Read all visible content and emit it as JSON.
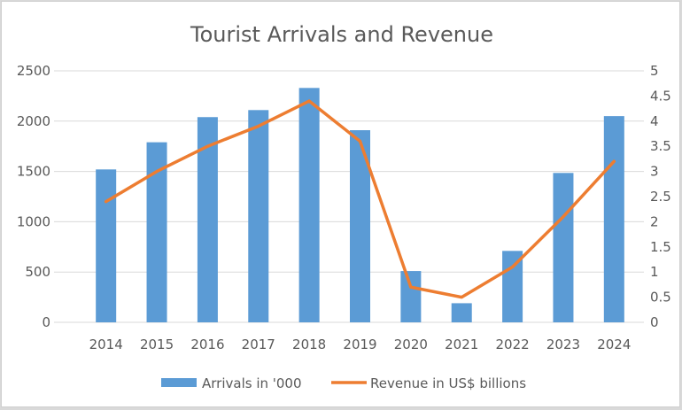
{
  "chart_data": {
    "type": "bar",
    "title": "Tourist Arrivals and Revenue",
    "xlabel": "",
    "ylabel": "",
    "y2label": "",
    "categories": [
      "2014",
      "2015",
      "2016",
      "2017",
      "2018",
      "2019",
      "2020",
      "2021",
      "2022",
      "2023",
      "2024"
    ],
    "series": [
      {
        "name": "Arrivals in '000",
        "type": "bar",
        "axis": "left",
        "color": "#5b9bd5",
        "values": [
          1520,
          1790,
          2040,
          2110,
          2330,
          1910,
          510,
          190,
          710,
          1485,
          2050
        ]
      },
      {
        "name": "Revenue in US$ billions",
        "type": "line",
        "axis": "right",
        "color": "#ed7d31",
        "values": [
          2.4,
          3.0,
          3.5,
          3.9,
          4.4,
          3.6,
          0.7,
          0.5,
          1.1,
          2.1,
          3.2
        ]
      }
    ],
    "ylim": [
      0,
      2500
    ],
    "yticks": [
      "0",
      "500",
      "1000",
      "1500",
      "2000",
      "2500"
    ],
    "y2lim": [
      0,
      5
    ],
    "y2ticks": [
      "0",
      "0.5",
      "1",
      "1.5",
      "2",
      "2.5",
      "3",
      "3.5",
      "4",
      "4.5",
      "5"
    ],
    "grid": true,
    "legend_position": "bottom"
  }
}
